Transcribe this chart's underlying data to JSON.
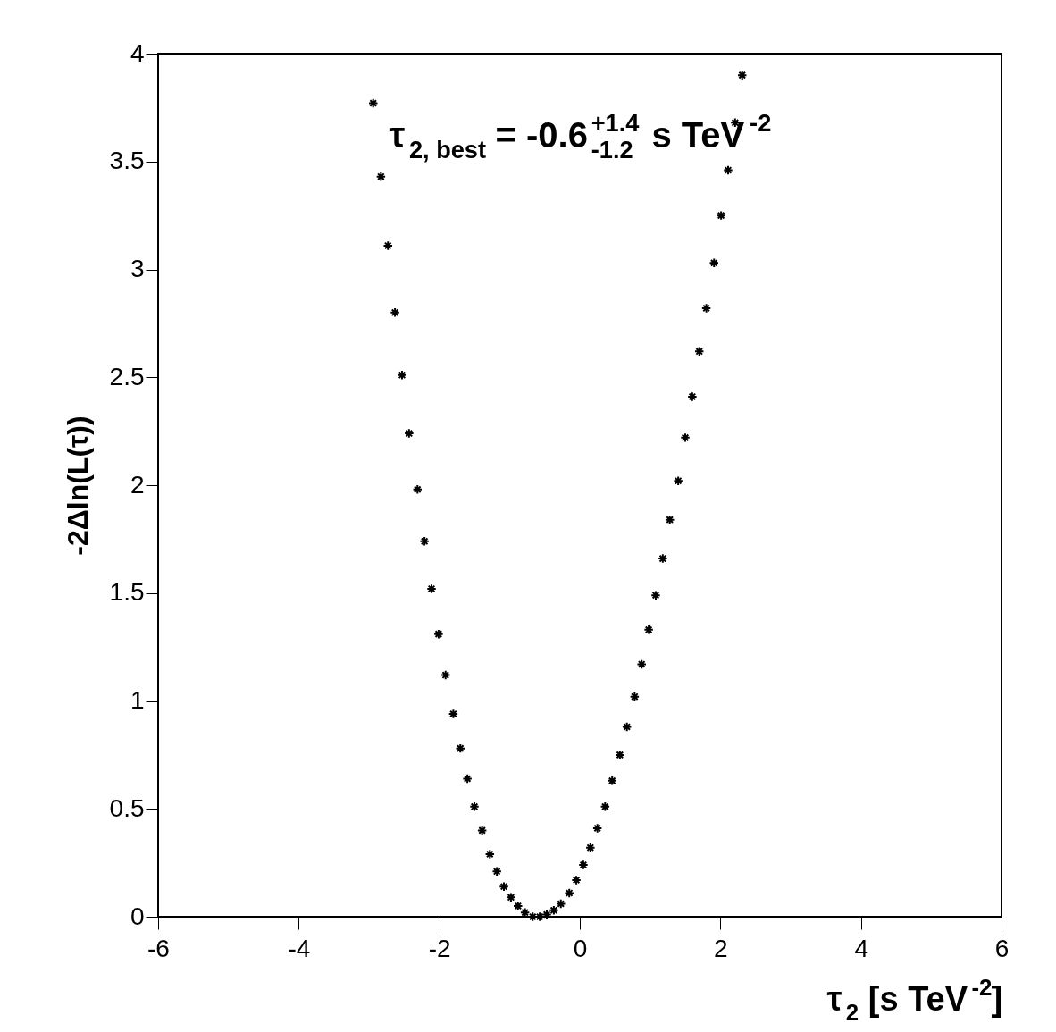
{
  "chart_data": {
    "type": "scatter",
    "xlabel": "τ$_{2}$ [s TeV$^{-2}$]",
    "ylabel": "-2Δln(L(τ))",
    "annotations": [
      "τ$_{2, best}$ = -0.6$^{+1.4}$$_{-1.2}$ s TeV$^{-2}$"
    ],
    "x": [
      -2.94,
      -2.83,
      -2.73,
      -2.63,
      -2.53,
      -2.43,
      -2.31,
      -2.21,
      -2.11,
      -2.01,
      -1.91,
      -1.8,
      -1.7,
      -1.6,
      -1.5,
      -1.39,
      -1.28,
      -1.18,
      -1.08,
      -0.98,
      -0.88,
      -0.78,
      -0.67,
      -0.57,
      -0.47,
      -0.37,
      -0.27,
      -0.15,
      -0.05,
      0.05,
      0.15,
      0.25,
      0.36,
      0.46,
      0.57,
      0.67,
      0.78,
      0.88,
      0.98,
      1.08,
      1.18,
      1.28,
      1.4,
      1.5,
      1.6,
      1.7,
      1.8,
      1.91,
      2.01,
      2.11,
      2.21,
      2.31
    ],
    "series": [
      {
        "color": "#000000",
        "values": [
          3.77,
          3.43,
          3.11,
          2.8,
          2.51,
          2.24,
          1.98,
          1.74,
          1.52,
          1.31,
          1.12,
          0.94,
          0.78,
          0.64,
          0.51,
          0.4,
          0.29,
          0.21,
          0.14,
          0.09,
          0.05,
          0.02,
          0.0,
          0.0,
          0.01,
          0.03,
          0.06,
          0.11,
          0.17,
          0.24,
          0.32,
          0.41,
          0.51,
          0.63,
          0.75,
          0.88,
          1.02,
          1.17,
          1.33,
          1.49,
          1.66,
          1.84,
          2.02,
          2.22,
          2.41,
          2.62,
          2.82,
          3.03,
          3.25,
          3.46,
          3.68,
          3.9
        ]
      }
    ],
    "xlim": [
      -6,
      6
    ],
    "xticks": [
      -6,
      -4,
      -2,
      0,
      2,
      4,
      6
    ],
    "ylim": [
      0,
      4
    ],
    "yticks": [
      0,
      0.5,
      1,
      1.5,
      2,
      2.5,
      3,
      3.5,
      4
    ],
    "marker": "cross",
    "grid": false
  }
}
